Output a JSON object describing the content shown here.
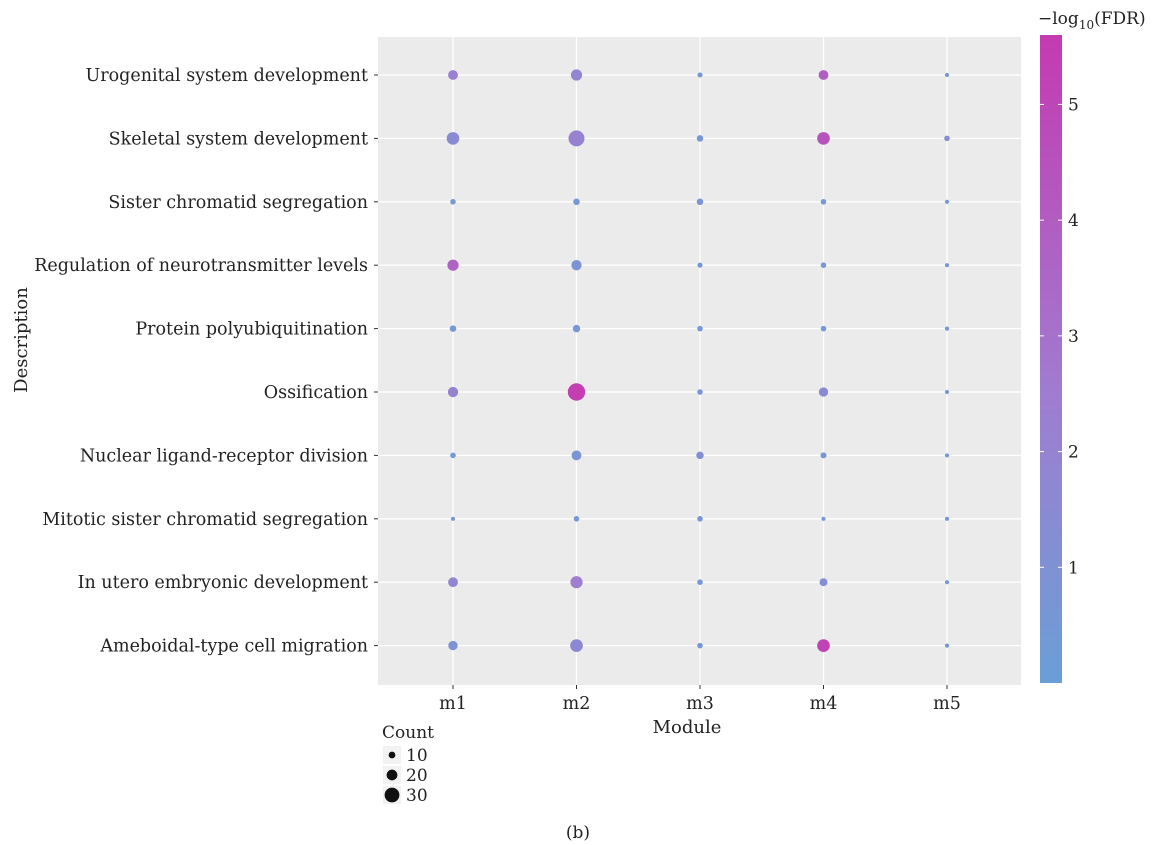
{
  "chart_data": {
    "type": "scatter",
    "xlabel": "Module",
    "ylabel": "Description",
    "caption": "(b)",
    "x_categories": [
      "m1",
      "m2",
      "m3",
      "m4",
      "m5"
    ],
    "y_categories": [
      "Urogenital system development",
      "Skeletal system development",
      "Sister chromatid segregation",
      "Regulation of neurotransmitter levels",
      "Protein polyubiquitination",
      "Ossification",
      "Nuclear ligand-receptor division",
      "Mitotic sister chromatid segregation",
      "In utero embryonic development",
      "Ameboidal-type cell migration"
    ],
    "size_legend": {
      "title": "Count",
      "values": [
        10,
        20,
        30
      ]
    },
    "color_legend": {
      "title_prefix": "−log",
      "title_sub": "10",
      "title_suffix": "(FDR)",
      "ticks": [
        1,
        2,
        3,
        4,
        5
      ],
      "range": [
        0,
        5.6
      ],
      "low_color": "#6A9FD6",
      "mid_color": "#A07CD0",
      "high_color": "#C43AB0"
    },
    "points": [
      {
        "description": "Urogenital system development",
        "module": "m1",
        "count": 14,
        "neg_log10_fdr": 2.3
      },
      {
        "description": "Urogenital system development",
        "module": "m2",
        "count": 17,
        "neg_log10_fdr": 1.8
      },
      {
        "description": "Urogenital system development",
        "module": "m3",
        "count": 4,
        "neg_log10_fdr": 0.5
      },
      {
        "description": "Urogenital system development",
        "module": "m4",
        "count": 14,
        "neg_log10_fdr": 3.9
      },
      {
        "description": "Urogenital system development",
        "module": "m5",
        "count": 2,
        "neg_log10_fdr": 0.5
      },
      {
        "description": "Skeletal system development",
        "module": "m1",
        "count": 20,
        "neg_log10_fdr": 1.5
      },
      {
        "description": "Skeletal system development",
        "module": "m2",
        "count": 27,
        "neg_log10_fdr": 2.1
      },
      {
        "description": "Skeletal system development",
        "module": "m3",
        "count": 7,
        "neg_log10_fdr": 0.6
      },
      {
        "description": "Skeletal system development",
        "module": "m4",
        "count": 20,
        "neg_log10_fdr": 4.4
      },
      {
        "description": "Skeletal system development",
        "module": "m5",
        "count": 5,
        "neg_log10_fdr": 1.2
      },
      {
        "description": "Sister chromatid segregation",
        "module": "m1",
        "count": 5,
        "neg_log10_fdr": 0.6
      },
      {
        "description": "Sister chromatid segregation",
        "module": "m2",
        "count": 7,
        "neg_log10_fdr": 0.6
      },
      {
        "description": "Sister chromatid segregation",
        "module": "m3",
        "count": 7,
        "neg_log10_fdr": 0.9
      },
      {
        "description": "Sister chromatid segregation",
        "module": "m4",
        "count": 5,
        "neg_log10_fdr": 0.6
      },
      {
        "description": "Sister chromatid segregation",
        "module": "m5",
        "count": 2,
        "neg_log10_fdr": 0.5
      },
      {
        "description": "Regulation of neurotransmitter levels",
        "module": "m1",
        "count": 17,
        "neg_log10_fdr": 3.7
      },
      {
        "description": "Regulation of neurotransmitter levels",
        "module": "m2",
        "count": 15,
        "neg_log10_fdr": 0.9
      },
      {
        "description": "Regulation of neurotransmitter levels",
        "module": "m3",
        "count": 4,
        "neg_log10_fdr": 0.5
      },
      {
        "description": "Regulation of neurotransmitter levels",
        "module": "m4",
        "count": 5,
        "neg_log10_fdr": 0.6
      },
      {
        "description": "Regulation of neurotransmitter levels",
        "module": "m5",
        "count": 2,
        "neg_log10_fdr": 0.5
      },
      {
        "description": "Protein polyubiquitination",
        "module": "m1",
        "count": 7,
        "neg_log10_fdr": 0.6
      },
      {
        "description": "Protein polyubiquitination",
        "module": "m2",
        "count": 9,
        "neg_log10_fdr": 0.6
      },
      {
        "description": "Protein polyubiquitination",
        "module": "m3",
        "count": 5,
        "neg_log10_fdr": 0.6
      },
      {
        "description": "Protein polyubiquitination",
        "module": "m4",
        "count": 5,
        "neg_log10_fdr": 0.6
      },
      {
        "description": "Protein polyubiquitination",
        "module": "m5",
        "count": 2,
        "neg_log10_fdr": 0.5
      },
      {
        "description": "Ossification",
        "module": "m1",
        "count": 15,
        "neg_log10_fdr": 2.0
      },
      {
        "description": "Ossification",
        "module": "m2",
        "count": 30,
        "neg_log10_fdr": 5.4
      },
      {
        "description": "Ossification",
        "module": "m3",
        "count": 5,
        "neg_log10_fdr": 0.6
      },
      {
        "description": "Ossification",
        "module": "m4",
        "count": 13,
        "neg_log10_fdr": 1.5
      },
      {
        "description": "Ossification",
        "module": "m5",
        "count": 2,
        "neg_log10_fdr": 0.5
      },
      {
        "description": "Nuclear ligand-receptor division",
        "module": "m1",
        "count": 5,
        "neg_log10_fdr": 0.6
      },
      {
        "description": "Nuclear ligand-receptor division",
        "module": "m2",
        "count": 14,
        "neg_log10_fdr": 0.8
      },
      {
        "description": "Nuclear ligand-receptor division",
        "module": "m3",
        "count": 9,
        "neg_log10_fdr": 1.2
      },
      {
        "description": "Nuclear ligand-receptor division",
        "module": "m4",
        "count": 6,
        "neg_log10_fdr": 0.6
      },
      {
        "description": "Nuclear ligand-receptor division",
        "module": "m5",
        "count": 2,
        "neg_log10_fdr": 0.5
      },
      {
        "description": "Mitotic sister chromatid segregation",
        "module": "m1",
        "count": 2,
        "neg_log10_fdr": 0.5
      },
      {
        "description": "Mitotic sister chromatid segregation",
        "module": "m2",
        "count": 5,
        "neg_log10_fdr": 0.6
      },
      {
        "description": "Mitotic sister chromatid segregation",
        "module": "m3",
        "count": 5,
        "neg_log10_fdr": 0.8
      },
      {
        "description": "Mitotic sister chromatid segregation",
        "module": "m4",
        "count": 2,
        "neg_log10_fdr": 0.5
      },
      {
        "description": "Mitotic sister chromatid segregation",
        "module": "m5",
        "count": 2,
        "neg_log10_fdr": 0.5
      },
      {
        "description": "In utero embryonic development",
        "module": "m1",
        "count": 14,
        "neg_log10_fdr": 1.8
      },
      {
        "description": "In utero embryonic development",
        "module": "m2",
        "count": 19,
        "neg_log10_fdr": 2.4
      },
      {
        "description": "In utero embryonic development",
        "module": "m3",
        "count": 5,
        "neg_log10_fdr": 0.6
      },
      {
        "description": "In utero embryonic development",
        "module": "m4",
        "count": 10,
        "neg_log10_fdr": 1.2
      },
      {
        "description": "In utero embryonic development",
        "module": "m5",
        "count": 2,
        "neg_log10_fdr": 0.5
      },
      {
        "description": "Ameboidal-type cell migration",
        "module": "m1",
        "count": 13,
        "neg_log10_fdr": 0.9
      },
      {
        "description": "Ameboidal-type cell migration",
        "module": "m2",
        "count": 20,
        "neg_log10_fdr": 1.6
      },
      {
        "description": "Ameboidal-type cell migration",
        "module": "m3",
        "count": 5,
        "neg_log10_fdr": 0.6
      },
      {
        "description": "Ameboidal-type cell migration",
        "module": "m4",
        "count": 20,
        "neg_log10_fdr": 5.2
      },
      {
        "description": "Ameboidal-type cell migration",
        "module": "m5",
        "count": 2,
        "neg_log10_fdr": 0.5
      }
    ]
  }
}
